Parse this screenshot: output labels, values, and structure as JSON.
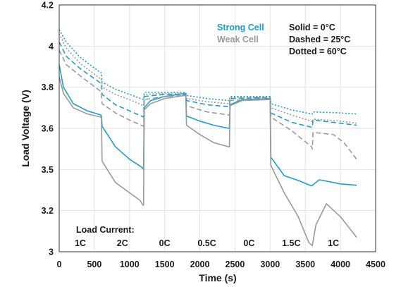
{
  "chart_data": {
    "type": "line",
    "title": "",
    "xlabel": "Time (s)",
    "ylabel": "Load Voltage (V)",
    "xlim": [
      0,
      4500
    ],
    "ylim": [
      3.0,
      4.2
    ],
    "x_ticks": [
      0,
      500,
      1000,
      1500,
      2000,
      2500,
      3000,
      3500,
      4000,
      4500
    ],
    "y_ticks": [
      3.0,
      3.2,
      3.5,
      3.6,
      3.8,
      4.0,
      4.2
    ],
    "y_tick_labels": [
      "3",
      "3.2",
      "3.5",
      "3.6",
      "3.8",
      "4",
      "4.2"
    ],
    "grid": true,
    "legend": {
      "placement": "top-right",
      "cells": [
        "Strong Cell",
        "Weak Cell"
      ],
      "styles": [
        "Solid = 0°C",
        "Dashed = 25°C",
        "Dotted = 60°C"
      ]
    },
    "annotations": {
      "header": "Load Current:",
      "segments": [
        {
          "label": "1C",
          "x": 300
        },
        {
          "label": "2C",
          "x": 900
        },
        {
          "label": "0C",
          "x": 1500
        },
        {
          "label": "0.5C",
          "x": 2100
        },
        {
          "label": "0C",
          "x": 2700
        },
        {
          "label": "1.5C",
          "x": 3300
        },
        {
          "label": "1C",
          "x": 3900
        }
      ]
    },
    "colors": {
      "strong": "#1aa0cc",
      "weak": "#9a9a9a"
    },
    "series": [
      {
        "cell": "Strong Cell",
        "style": "solid",
        "temperature": "0°C",
        "points": [
          [
            0,
            3.91
          ],
          [
            60,
            3.8
          ],
          [
            200,
            3.72
          ],
          [
            400,
            3.685
          ],
          [
            590,
            3.665
          ],
          [
            600,
            3.66
          ],
          [
            610,
            3.61
          ],
          [
            800,
            3.555
          ],
          [
            1000,
            3.525
          ],
          [
            1180,
            3.505
          ],
          [
            1200,
            3.5
          ],
          [
            1210,
            3.7
          ],
          [
            1300,
            3.735
          ],
          [
            1500,
            3.755
          ],
          [
            1790,
            3.77
          ],
          [
            1800,
            3.77
          ],
          [
            1810,
            3.66
          ],
          [
            2000,
            3.635
          ],
          [
            2200,
            3.615
          ],
          [
            2410,
            3.6
          ],
          [
            2420,
            3.6
          ],
          [
            2430,
            3.715
          ],
          [
            2600,
            3.74
          ],
          [
            2990,
            3.745
          ],
          [
            3000,
            3.745
          ],
          [
            3010,
            3.53
          ],
          [
            3200,
            3.455
          ],
          [
            3400,
            3.42
          ],
          [
            3590,
            3.38
          ],
          [
            3600,
            3.385
          ],
          [
            3700,
            3.425
          ],
          [
            4000,
            3.395
          ],
          [
            4230,
            3.385
          ]
        ]
      },
      {
        "cell": "Weak Cell",
        "style": "solid",
        "temperature": "0°C",
        "points": [
          [
            0,
            3.85
          ],
          [
            60,
            3.77
          ],
          [
            200,
            3.7
          ],
          [
            400,
            3.67
          ],
          [
            590,
            3.655
          ],
          [
            600,
            3.65
          ],
          [
            610,
            3.52
          ],
          [
            800,
            3.405
          ],
          [
            1000,
            3.33
          ],
          [
            1150,
            3.275
          ],
          [
            1190,
            3.24
          ],
          [
            1200,
            3.24
          ],
          [
            1210,
            3.69
          ],
          [
            1300,
            3.72
          ],
          [
            1500,
            3.745
          ],
          [
            1790,
            3.76
          ],
          [
            1800,
            3.76
          ],
          [
            1810,
            3.615
          ],
          [
            2000,
            3.585
          ],
          [
            2200,
            3.565
          ],
          [
            2410,
            3.555
          ],
          [
            2420,
            3.555
          ],
          [
            2430,
            3.71
          ],
          [
            2600,
            3.735
          ],
          [
            2990,
            3.74
          ],
          [
            3000,
            3.74
          ],
          [
            3010,
            3.51
          ],
          [
            3200,
            3.33
          ],
          [
            3400,
            3.17
          ],
          [
            3550,
            3.045
          ],
          [
            3600,
            3.03
          ],
          [
            3650,
            3.13
          ],
          [
            3800,
            3.25
          ],
          [
            4000,
            3.17
          ],
          [
            4230,
            3.07
          ]
        ]
      },
      {
        "cell": "Strong Cell",
        "style": "dashed",
        "temperature": "25°C",
        "points": [
          [
            0,
            4.02
          ],
          [
            100,
            3.95
          ],
          [
            300,
            3.89
          ],
          [
            590,
            3.82
          ],
          [
            600,
            3.82
          ],
          [
            610,
            3.765
          ],
          [
            800,
            3.715
          ],
          [
            1000,
            3.685
          ],
          [
            1200,
            3.655
          ],
          [
            1210,
            3.755
          ],
          [
            1500,
            3.765
          ],
          [
            1800,
            3.765
          ],
          [
            1810,
            3.735
          ],
          [
            2100,
            3.715
          ],
          [
            2410,
            3.705
          ],
          [
            2420,
            3.705
          ],
          [
            2430,
            3.745
          ],
          [
            3000,
            3.75
          ],
          [
            3010,
            3.675
          ],
          [
            3300,
            3.63
          ],
          [
            3590,
            3.605
          ],
          [
            3600,
            3.605
          ],
          [
            3610,
            3.64
          ],
          [
            4000,
            3.625
          ],
          [
            4230,
            3.615
          ]
        ]
      },
      {
        "cell": "Weak Cell",
        "style": "dashed",
        "temperature": "25°C",
        "points": [
          [
            0,
            3.98
          ],
          [
            100,
            3.91
          ],
          [
            300,
            3.855
          ],
          [
            590,
            3.78
          ],
          [
            600,
            3.775
          ],
          [
            610,
            3.72
          ],
          [
            800,
            3.675
          ],
          [
            1000,
            3.64
          ],
          [
            1200,
            3.61
          ],
          [
            1210,
            3.74
          ],
          [
            1500,
            3.755
          ],
          [
            1800,
            3.76
          ],
          [
            1810,
            3.71
          ],
          [
            2100,
            3.68
          ],
          [
            2410,
            3.665
          ],
          [
            2420,
            3.665
          ],
          [
            2430,
            3.735
          ],
          [
            3000,
            3.745
          ],
          [
            3010,
            3.655
          ],
          [
            3300,
            3.595
          ],
          [
            3590,
            3.555
          ],
          [
            3600,
            3.55
          ],
          [
            3610,
            3.59
          ],
          [
            3900,
            3.585
          ],
          [
            4050,
            3.565
          ],
          [
            4230,
            3.525
          ]
        ]
      },
      {
        "cell": "Strong Cell",
        "style": "dotted",
        "temperature": "60°C",
        "points": [
          [
            0,
            4.08
          ],
          [
            100,
            4.02
          ],
          [
            300,
            3.945
          ],
          [
            590,
            3.87
          ],
          [
            600,
            3.87
          ],
          [
            610,
            3.825
          ],
          [
            800,
            3.79
          ],
          [
            1000,
            3.765
          ],
          [
            1200,
            3.74
          ],
          [
            1210,
            3.775
          ],
          [
            1500,
            3.775
          ],
          [
            1800,
            3.775
          ],
          [
            1810,
            3.76
          ],
          [
            2100,
            3.745
          ],
          [
            2410,
            3.735
          ],
          [
            2420,
            3.735
          ],
          [
            2430,
            3.755
          ],
          [
            3000,
            3.755
          ],
          [
            3010,
            3.72
          ],
          [
            3300,
            3.69
          ],
          [
            3590,
            3.67
          ],
          [
            3600,
            3.67
          ],
          [
            3610,
            3.68
          ],
          [
            4000,
            3.675
          ],
          [
            4230,
            3.67
          ]
        ]
      },
      {
        "cell": "Weak Cell",
        "style": "dotted",
        "temperature": "60°C",
        "points": [
          [
            0,
            4.06
          ],
          [
            100,
            3.99
          ],
          [
            300,
            3.915
          ],
          [
            590,
            3.84
          ],
          [
            600,
            3.84
          ],
          [
            610,
            3.8
          ],
          [
            800,
            3.765
          ],
          [
            1000,
            3.74
          ],
          [
            1200,
            3.71
          ],
          [
            1210,
            3.765
          ],
          [
            1500,
            3.77
          ],
          [
            1800,
            3.77
          ],
          [
            1810,
            3.745
          ],
          [
            2100,
            3.73
          ],
          [
            2410,
            3.72
          ],
          [
            2420,
            3.72
          ],
          [
            2430,
            3.75
          ],
          [
            3000,
            3.75
          ],
          [
            3010,
            3.7
          ],
          [
            3300,
            3.665
          ],
          [
            3590,
            3.635
          ],
          [
            3600,
            3.63
          ],
          [
            3610,
            3.645
          ],
          [
            4000,
            3.635
          ],
          [
            4230,
            3.625
          ]
        ]
      }
    ]
  }
}
